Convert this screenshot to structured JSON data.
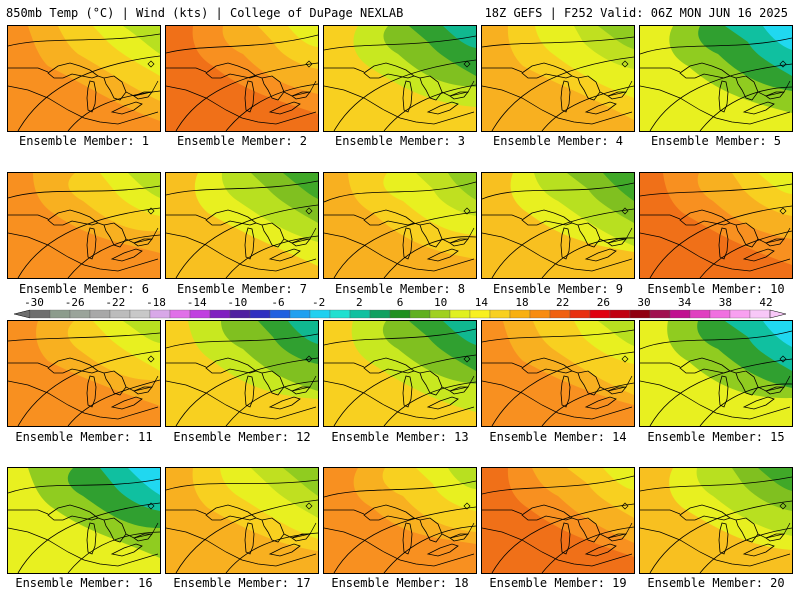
{
  "header": {
    "left": "850mb Temp (°C) | Wind (kts) | College of DuPage NEXLAB",
    "right": "18Z GEFS | F252 Valid: 06Z MON JUN 16 2025"
  },
  "panels": [
    {
      "caption": "Ensemble Member: 1",
      "theme": "warm"
    },
    {
      "caption": "Ensemble Member: 2",
      "theme": "hot"
    },
    {
      "caption": "Ensemble Member: 3",
      "theme": "cool"
    },
    {
      "caption": "Ensemble Member: 4",
      "theme": "mild"
    },
    {
      "caption": "Ensemble Member: 5",
      "theme": "cold"
    },
    {
      "caption": "Ensemble Member: 6",
      "theme": "warm"
    },
    {
      "caption": "Ensemble Member: 7",
      "theme": "mildcool"
    },
    {
      "caption": "Ensemble Member: 8",
      "theme": "mild"
    },
    {
      "caption": "Ensemble Member: 9",
      "theme": "mildcool"
    },
    {
      "caption": "Ensemble Member: 10",
      "theme": "hot"
    },
    {
      "caption": "Ensemble Member: 11",
      "theme": "warm"
    },
    {
      "caption": "Ensemble Member: 12",
      "theme": "cool"
    },
    {
      "caption": "Ensemble Member: 13",
      "theme": "cool"
    },
    {
      "caption": "Ensemble Member: 14",
      "theme": "warm"
    },
    {
      "caption": "Ensemble Member: 15",
      "theme": "cold"
    },
    {
      "caption": "Ensemble Member: 16",
      "theme": "cold"
    },
    {
      "caption": "Ensemble Member: 17",
      "theme": "mild"
    },
    {
      "caption": "Ensemble Member: 18",
      "theme": "warm"
    },
    {
      "caption": "Ensemble Member: 19",
      "theme": "hot"
    },
    {
      "caption": "Ensemble Member: 20",
      "theme": "mildcool"
    }
  ],
  "colorbar": {
    "labels": [
      "-30",
      "-26",
      "-22",
      "-18",
      "-14",
      "-10",
      "-6",
      "-2",
      "2",
      "6",
      "10",
      "14",
      "18",
      "22",
      "26",
      "30",
      "34",
      "38",
      "42"
    ],
    "colors": [
      "#6e6e6e",
      "#8c9c8c",
      "#9aa49a",
      "#a8a8a8",
      "#bcbcbc",
      "#c8c8c8",
      "#d8a8e8",
      "#e070e8",
      "#c040e0",
      "#8020c0",
      "#5020a0",
      "#3030c0",
      "#2060e0",
      "#20a0f0",
      "#20d0f0",
      "#20e0d0",
      "#10c0a0",
      "#10a060",
      "#209020",
      "#60b020",
      "#a0d020",
      "#e0f020",
      "#f8f020",
      "#f8d020",
      "#f8b010",
      "#f88c10",
      "#f06010",
      "#e83010",
      "#e00010",
      "#c00010",
      "#900010",
      "#a01050",
      "#c01090",
      "#e040c0",
      "#f070e0",
      "#f8a0f0",
      "#f8c8f8"
    ]
  }
}
